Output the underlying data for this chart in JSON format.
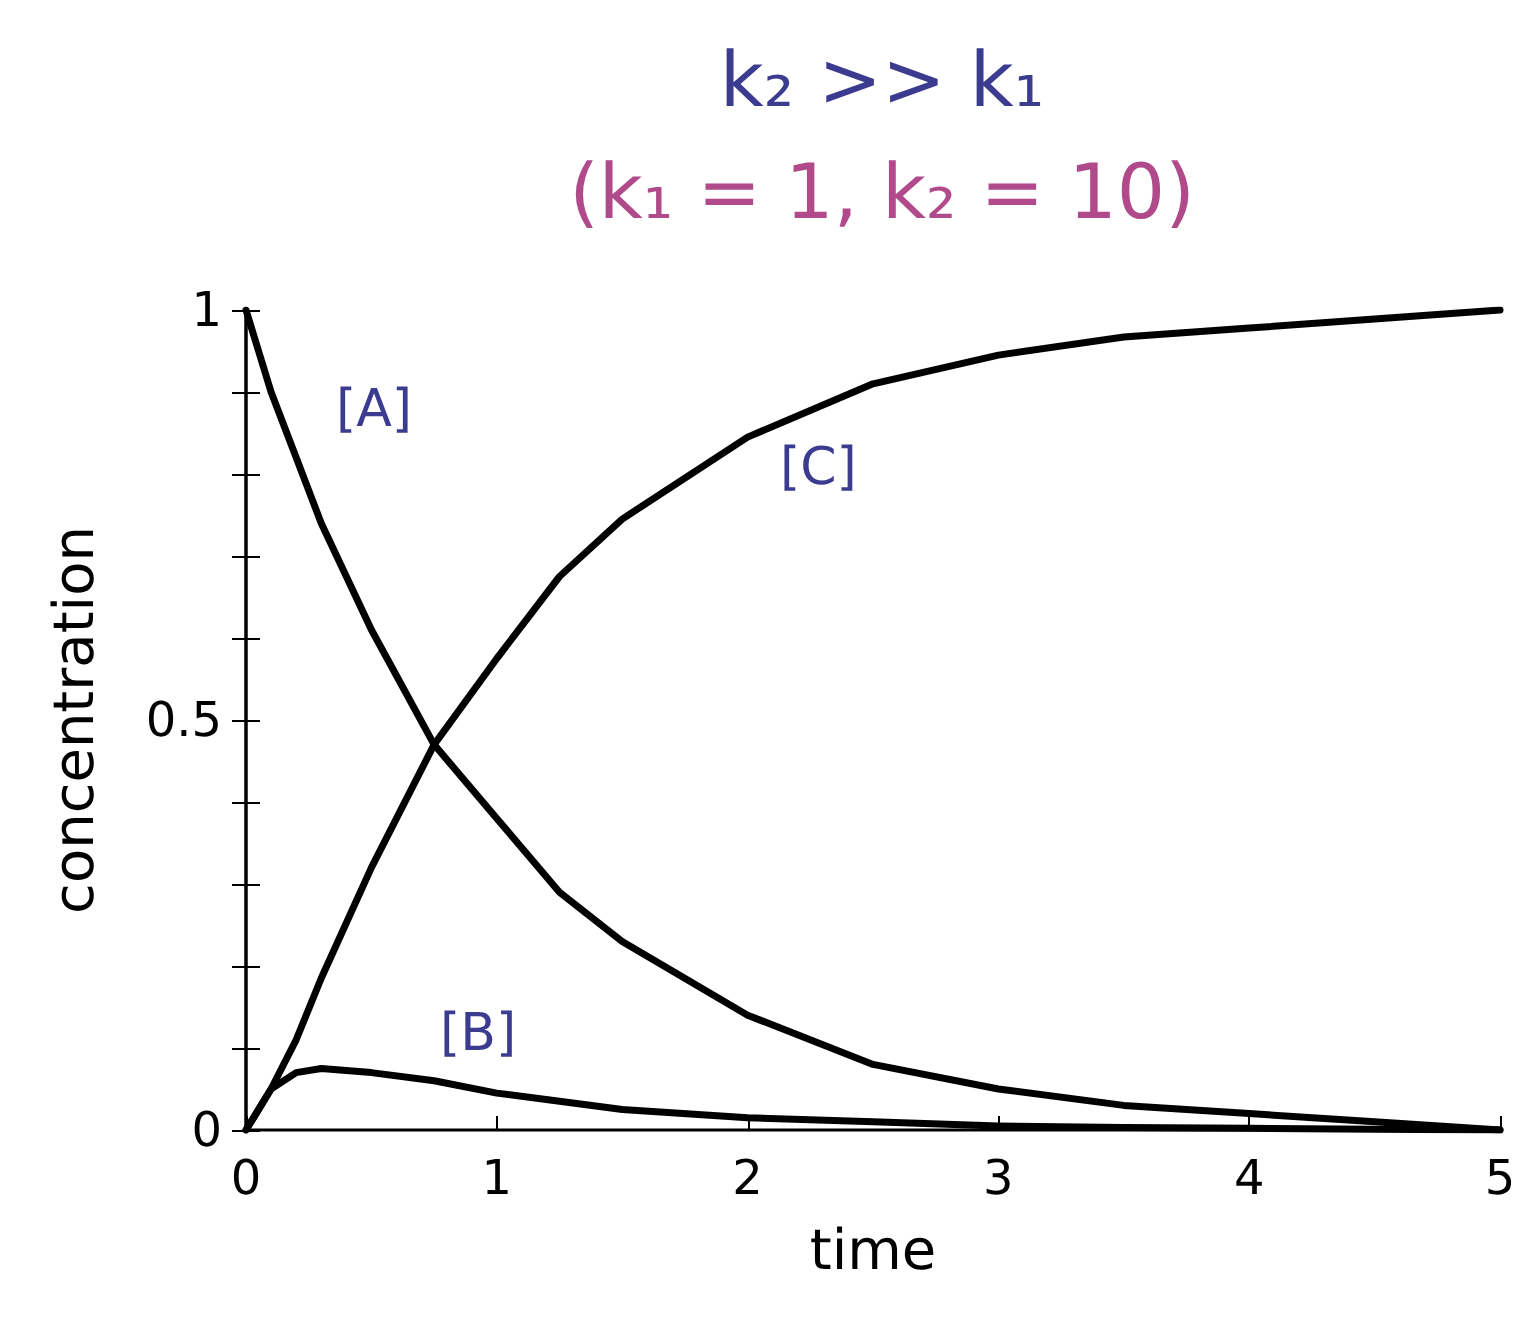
{
  "chart_data": {
    "type": "line",
    "title": "k₂ >> k₁",
    "subtitle": "(k₁ = 1, k₂ = 10)",
    "xlabel": "time",
    "ylabel": "concentration",
    "x": [
      0,
      0.1,
      0.2,
      0.3,
      0.5,
      0.75,
      1,
      1.25,
      1.5,
      2,
      2.5,
      3,
      3.5,
      4,
      4.5,
      5
    ],
    "series": [
      {
        "color": "#000000",
        "values": [
          1,
          0.9,
          0.82,
          0.74,
          0.61,
          0.47,
          0.38,
          0.29,
          0.23,
          0.14,
          0.08,
          0.05,
          0.03,
          0.02,
          0.01,
          0
        ]
      },
      {
        "color": "#000000",
        "values": [
          0,
          0.05,
          0.07,
          0.075,
          0.07,
          0.06,
          0.045,
          0.035,
          0.025,
          0.015,
          0.01,
          0.005,
          0.003,
          0.002,
          0.001,
          0
        ]
      },
      {
        "color": "#000000",
        "values": [
          0,
          0.05,
          0.11,
          0.185,
          0.32,
          0.47,
          0.575,
          0.675,
          0.745,
          0.845,
          0.91,
          0.945,
          0.967,
          0.978,
          0.989,
          1
        ]
      }
    ],
    "annotations": [
      "[A]",
      "[B]",
      "[C]"
    ],
    "xlim": [
      0,
      5
    ],
    "xticks": [
      0,
      1,
      2,
      3,
      4,
      5
    ],
    "ylim": [
      0,
      1
    ],
    "yticks": [
      0,
      {
        "value": 0.1,
        "label": null
      },
      {
        "value": 0.2,
        "label": null
      },
      {
        "value": 0.3,
        "label": null
      },
      {
        "value": 0.4,
        "label": null
      },
      0.5,
      {
        "value": 0.6,
        "label": null
      },
      {
        "value": 0.7,
        "label": null
      },
      {
        "value": 0.8,
        "label": null
      },
      {
        "value": 0.9,
        "label": null
      },
      1
    ],
    "grid": false,
    "marker": "none",
    "line_style": "solid"
  }
}
